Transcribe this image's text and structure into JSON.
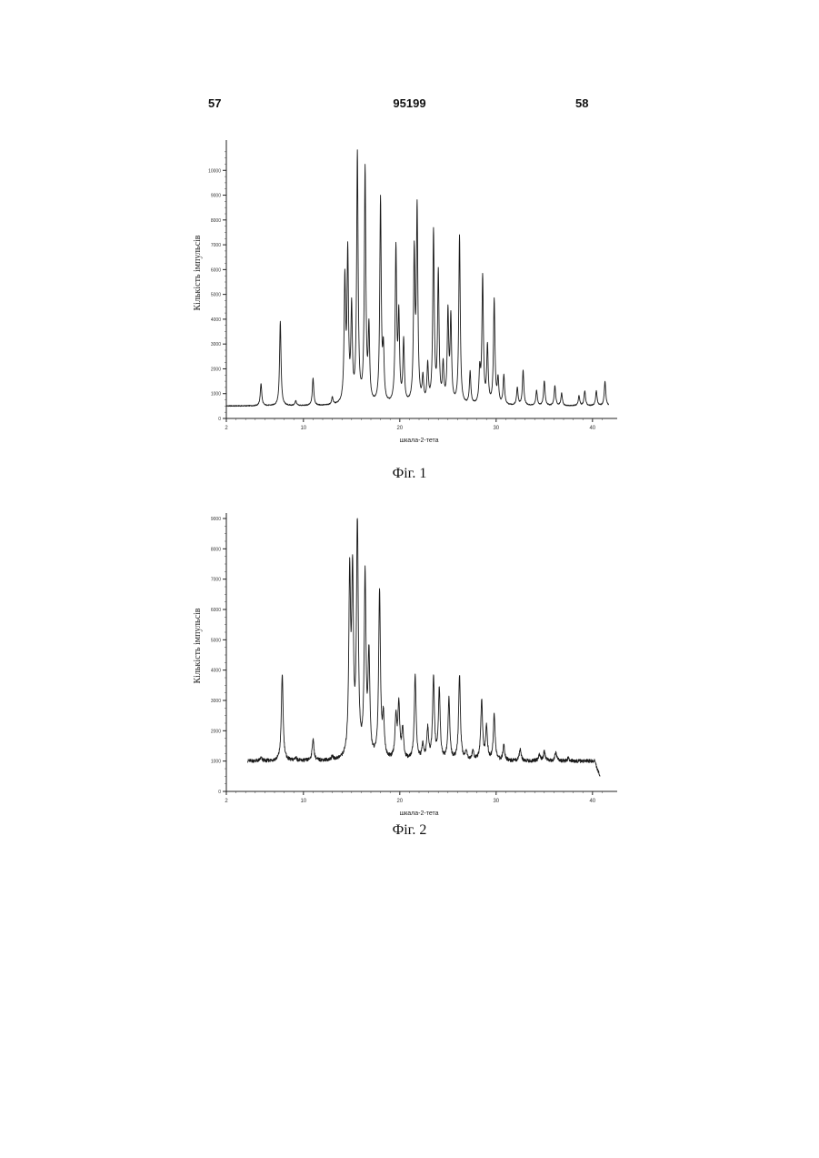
{
  "header": {
    "left": "57",
    "center": "95199",
    "right": "58"
  },
  "figures": [
    {
      "caption": "Фіг. 1"
    },
    {
      "caption": "Фіг. 2"
    }
  ],
  "chart_data": [
    {
      "type": "line",
      "xlabel": "шкала-2-тета",
      "ylabel": "Кількість імпульсів",
      "xlim": [
        2,
        42
      ],
      "ylim": [
        0,
        11000
      ],
      "xticks": [
        2,
        10,
        20,
        30,
        40
      ],
      "yticks": [
        0,
        1000,
        2000,
        3000,
        4000,
        5000,
        6000,
        7000,
        8000,
        9000,
        10000
      ],
      "ytick_labels": [
        "0",
        "1000",
        "2000",
        "3000",
        "4000",
        "5000",
        "6000",
        "7000",
        "8000",
        "9000",
        "10000"
      ],
      "baseline": 500,
      "peaks": [
        [
          5.6,
          1400
        ],
        [
          7.6,
          3900
        ],
        [
          9.2,
          700
        ],
        [
          11.0,
          1600
        ],
        [
          13.0,
          800
        ],
        [
          14.3,
          5400
        ],
        [
          14.6,
          6400
        ],
        [
          15.0,
          4200
        ],
        [
          15.6,
          10500
        ],
        [
          16.4,
          9900
        ],
        [
          16.8,
          3400
        ],
        [
          18.0,
          8700
        ],
        [
          18.3,
          2500
        ],
        [
          19.6,
          6700
        ],
        [
          19.9,
          3900
        ],
        [
          20.4,
          3000
        ],
        [
          21.5,
          6400
        ],
        [
          21.8,
          8200
        ],
        [
          22.4,
          1500
        ],
        [
          22.9,
          2000
        ],
        [
          23.5,
          7400
        ],
        [
          24.0,
          5700
        ],
        [
          24.5,
          2000
        ],
        [
          25.0,
          4100
        ],
        [
          25.3,
          3900
        ],
        [
          26.2,
          7300
        ],
        [
          27.3,
          1800
        ],
        [
          28.3,
          1800
        ],
        [
          28.6,
          5600
        ],
        [
          29.1,
          2800
        ],
        [
          29.8,
          4700
        ],
        [
          30.2,
          1500
        ],
        [
          30.8,
          1700
        ],
        [
          32.2,
          1200
        ],
        [
          32.8,
          1900
        ],
        [
          34.2,
          1100
        ],
        [
          35.0,
          1500
        ],
        [
          36.1,
          1300
        ],
        [
          36.8,
          1000
        ],
        [
          38.6,
          900
        ],
        [
          39.2,
          1100
        ],
        [
          40.4,
          1100
        ],
        [
          41.3,
          1500
        ]
      ]
    },
    {
      "type": "line",
      "xlabel": "шкала-2-тета",
      "ylabel": "Кількість імпульсів",
      "xlim": [
        2,
        42
      ],
      "ylim": [
        0,
        9000
      ],
      "xticks": [
        2,
        10,
        20,
        30,
        40
      ],
      "yticks": [
        0,
        1000,
        2000,
        3000,
        4000,
        5000,
        6000,
        7000,
        8000,
        9000
      ],
      "ytick_labels": [
        "0",
        "1000",
        "2000",
        "3000",
        "4000",
        "5000",
        "6000",
        "7000",
        "8000",
        "9000"
      ],
      "x_start": 4.2,
      "x_end": 40.8,
      "baseline": 1000,
      "peaks": [
        [
          5.6,
          1100
        ],
        [
          7.8,
          3850
        ],
        [
          9.2,
          1100
        ],
        [
          11.0,
          1700
        ],
        [
          13.0,
          1100
        ],
        [
          14.8,
          6800
        ],
        [
          15.1,
          6700
        ],
        [
          15.6,
          8700
        ],
        [
          16.4,
          6900
        ],
        [
          16.8,
          4300
        ],
        [
          17.9,
          6500
        ],
        [
          18.3,
          2300
        ],
        [
          19.6,
          2400
        ],
        [
          19.9,
          2800
        ],
        [
          20.3,
          2000
        ],
        [
          21.6,
          3800
        ],
        [
          22.4,
          1500
        ],
        [
          22.9,
          2000
        ],
        [
          23.5,
          3700
        ],
        [
          24.1,
          3300
        ],
        [
          25.1,
          3000
        ],
        [
          26.2,
          3800
        ],
        [
          26.9,
          1300
        ],
        [
          27.6,
          1300
        ],
        [
          28.5,
          3000
        ],
        [
          29.0,
          2100
        ],
        [
          29.8,
          2500
        ],
        [
          30.8,
          1500
        ],
        [
          32.5,
          1400
        ],
        [
          33.5,
          1000
        ],
        [
          34.5,
          1200
        ],
        [
          35.0,
          1300
        ],
        [
          36.2,
          1300
        ],
        [
          37.5,
          1100
        ],
        [
          38.5,
          1000
        ]
      ]
    }
  ]
}
